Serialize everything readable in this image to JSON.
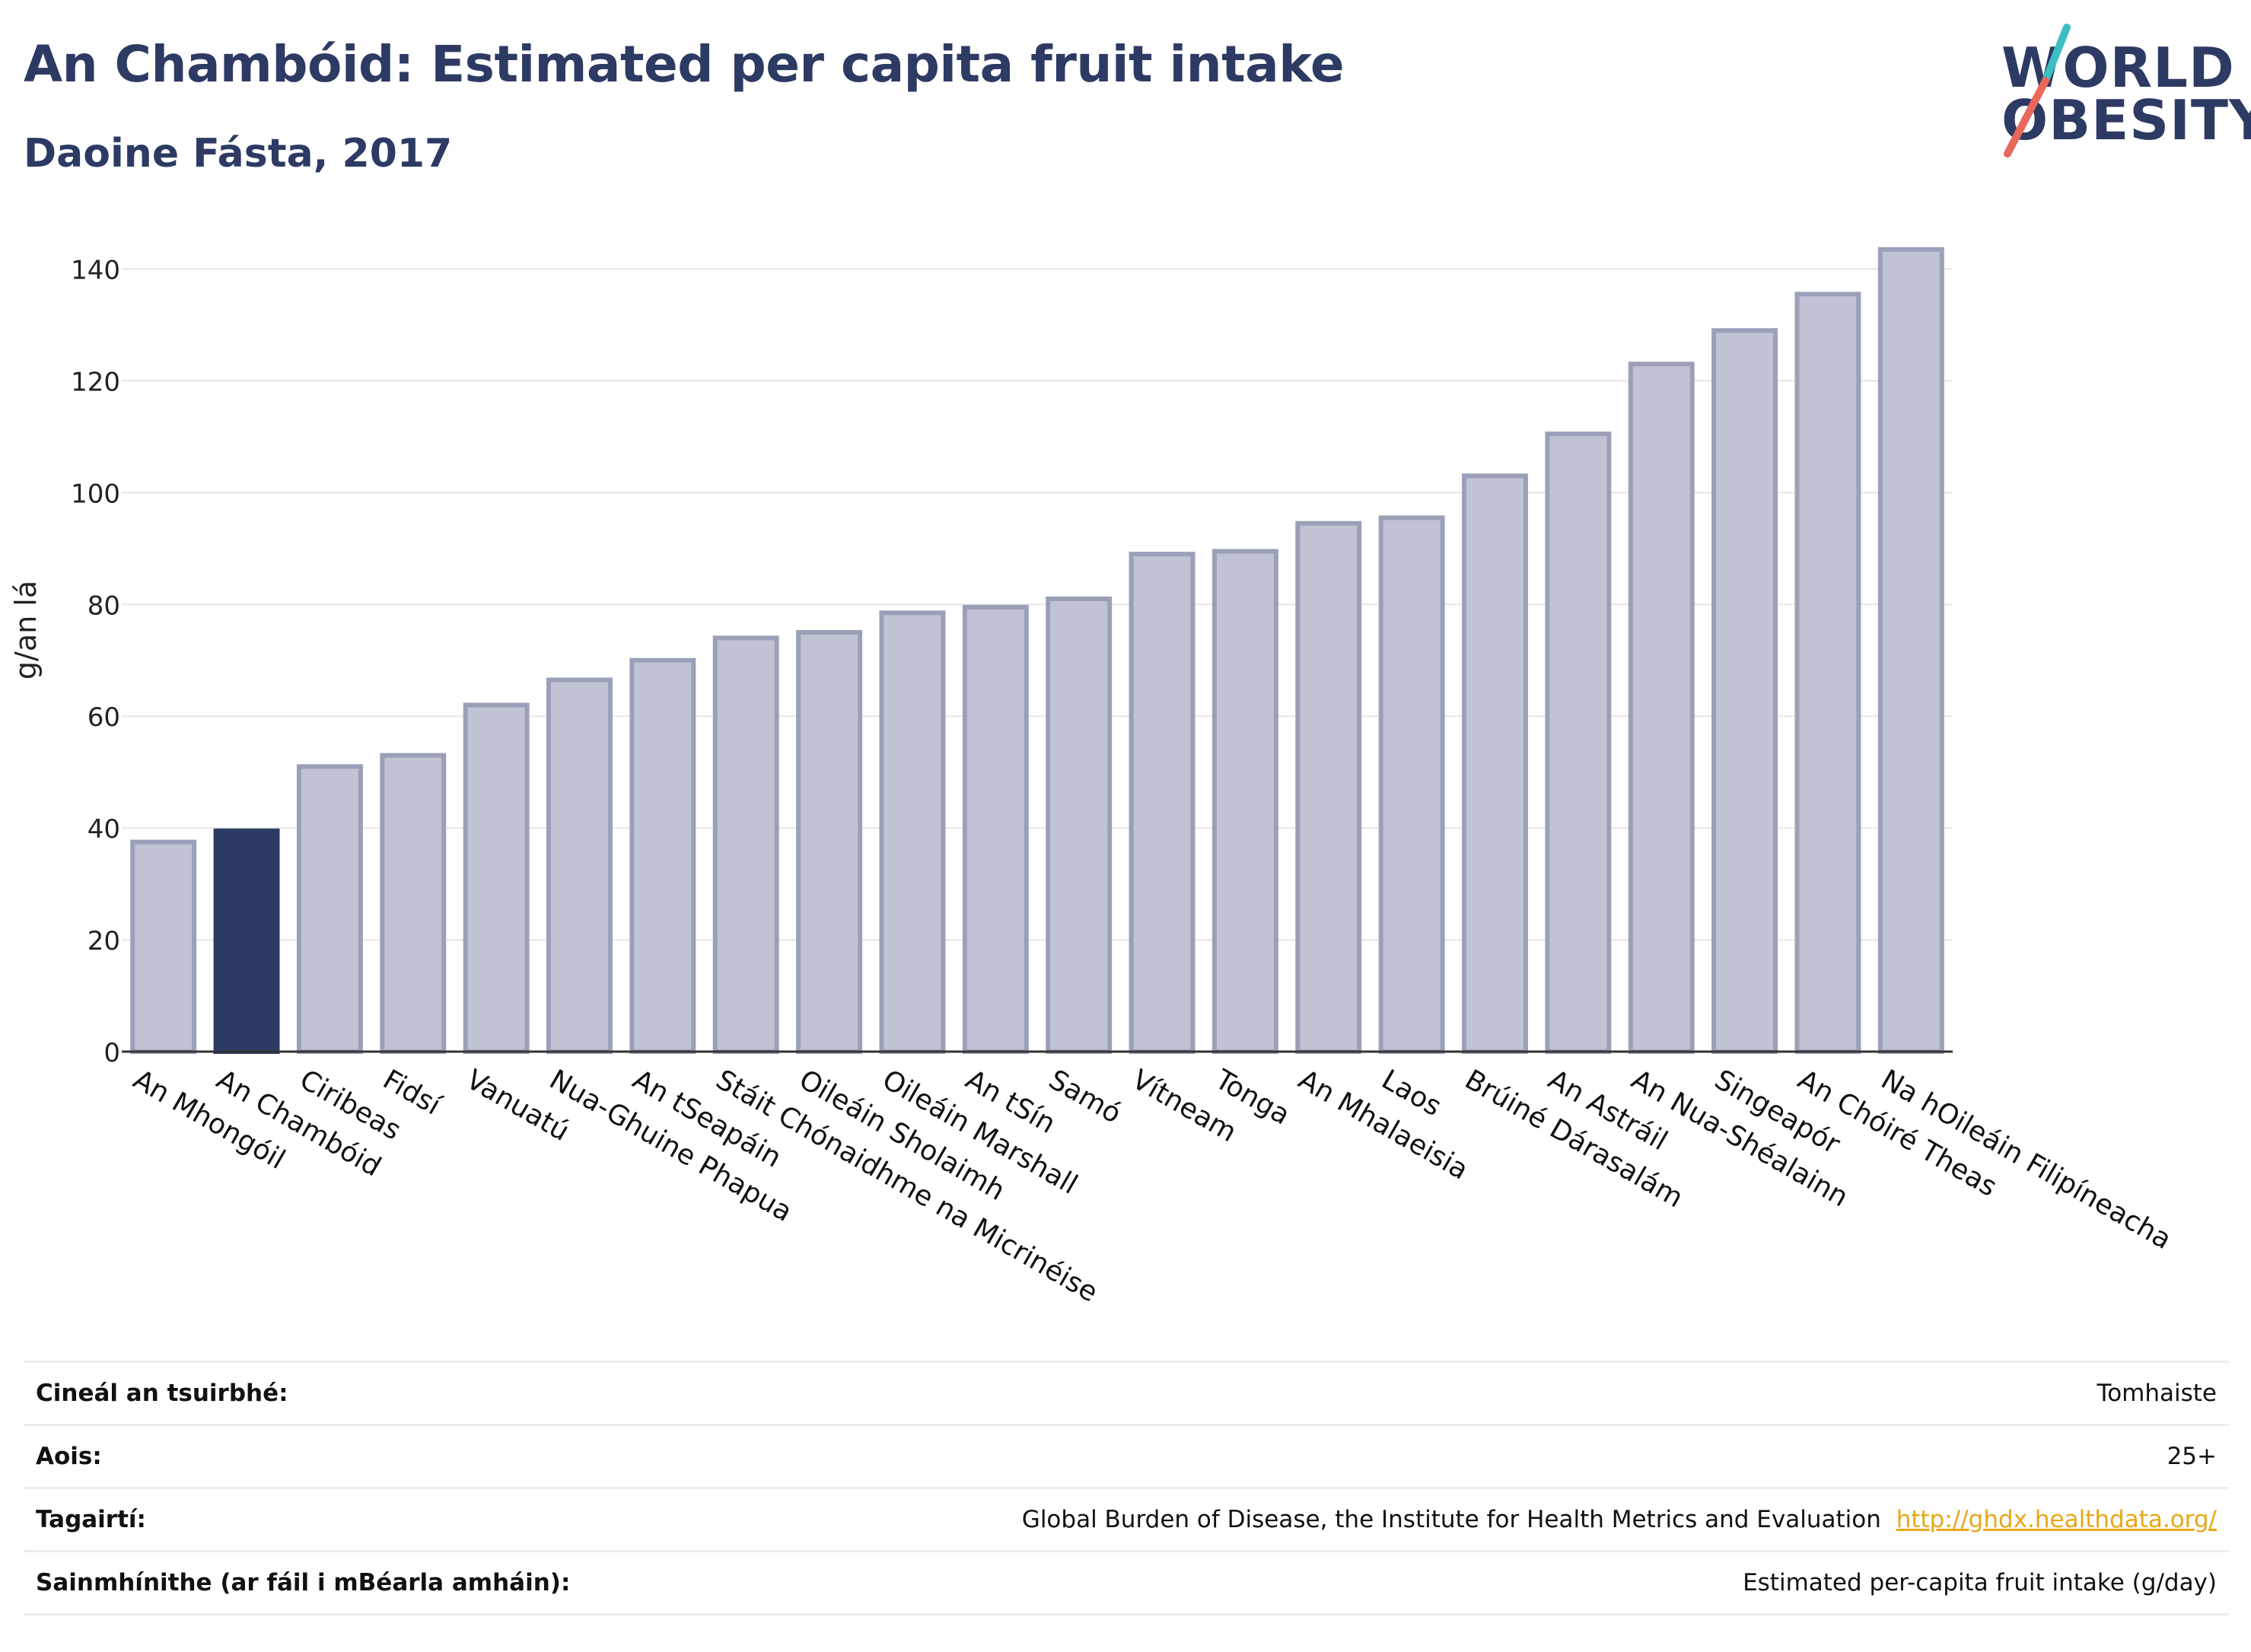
{
  "header": {
    "title": "An Chambóid: Estimated per capita fruit intake",
    "subtitle": "Daoine Fásta, 2017"
  },
  "logo": {
    "line1": "WORLD",
    "line2": "OBESITY"
  },
  "colors": {
    "accent": "#2d3a63",
    "bar_default": "#bfc3d3",
    "bar_default_stroke": "#9aa0b8",
    "bar_highlight": "#2d3a63",
    "link": "#e6a817",
    "logo_slash_top": "#3bbfc4",
    "logo_slash_bottom": "#e8685a"
  },
  "chart_data": {
    "type": "bar",
    "ylabel": "g/an lá",
    "ylim": [
      0,
      150
    ],
    "yticks": [
      0,
      20,
      40,
      60,
      80,
      100,
      120,
      140
    ],
    "grid": true,
    "highlight": "An Chambóid",
    "categories": [
      "An Mhongóil",
      "An Chambóid",
      "Ciribeas",
      "Fidsí",
      "Vanuatú",
      "Nua-Ghuine Phapua",
      "An tSeapáin",
      "Stáit Chónaidhme na Micrinéise",
      "Oileáin Sholaimh",
      "Oileáin Marshall",
      "An tSín",
      "Samó",
      "Vítneam",
      "Tonga",
      "An Mhalaeisia",
      "Laos",
      "Brúiné Dárasalám",
      "An Astráil",
      "An Nua-Shéalainn",
      "Singeapór",
      "An Chóiré Theas",
      "Na hOileáin Filipíneacha"
    ],
    "values": [
      37.5,
      39.5,
      51,
      53,
      62,
      66.5,
      70,
      74,
      75,
      78.5,
      79.5,
      81,
      89,
      89.5,
      94.5,
      95.5,
      103,
      110.5,
      123,
      129,
      135.5,
      143.5
    ]
  },
  "meta": [
    {
      "key": "Cineál an tsuirbhé:",
      "value": "Tomhaiste"
    },
    {
      "key": "Aois:",
      "value": "25+"
    },
    {
      "key": "Tagairtí:",
      "value": "Global Burden of Disease, the Institute for Health Metrics and Evaluation",
      "link": "http://ghdx.healthdata.org/"
    },
    {
      "key": "Sainmhínithe (ar fáil i mBéarla amháin):",
      "value": "Estimated per-capita fruit intake (g/day)"
    }
  ]
}
